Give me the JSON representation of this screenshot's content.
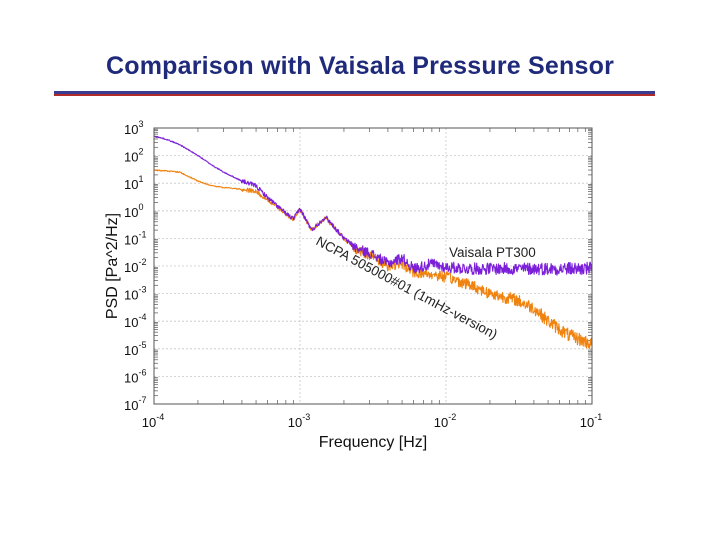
{
  "slide": {
    "title": "Comparison with Vaisala Pressure Sensor",
    "title_color": "#1f2a7a",
    "rule_top_color": "#3a3c8f",
    "rule_bottom_color": "#b02a2a"
  },
  "chart_data": {
    "type": "line",
    "title": "",
    "xlabel": "Frequency [Hz]",
    "ylabel": "PSD [Pa^2/Hz]",
    "xscale": "log",
    "yscale": "log",
    "xlim": [
      0.0001,
      0.1
    ],
    "ylim": [
      1e-07,
      1000
    ],
    "grid": true,
    "x_ticks": [
      {
        "base": "10",
        "exp": "-4"
      },
      {
        "base": "10",
        "exp": "-3"
      },
      {
        "base": "10",
        "exp": "-2"
      },
      {
        "base": "10",
        "exp": "-1"
      }
    ],
    "y_ticks": [
      {
        "base": "10",
        "exp": "3"
      },
      {
        "base": "10",
        "exp": "2"
      },
      {
        "base": "10",
        "exp": "1"
      },
      {
        "base": "10",
        "exp": "0"
      },
      {
        "base": "10",
        "exp": "-1"
      },
      {
        "base": "10",
        "exp": "-2"
      },
      {
        "base": "10",
        "exp": "-3"
      },
      {
        "base": "10",
        "exp": "-4"
      },
      {
        "base": "10",
        "exp": "-5"
      },
      {
        "base": "10",
        "exp": "-6"
      },
      {
        "base": "10",
        "exp": "-7"
      }
    ],
    "series": [
      {
        "name": "Vaisala PT300",
        "color": "#7b1fd8",
        "x": [
          0.0001,
          0.00012,
          0.00015,
          0.0002,
          0.00025,
          0.0003,
          0.0004,
          0.0005,
          0.0006,
          0.0007,
          0.0008,
          0.0009,
          0.001,
          0.0012,
          0.0015,
          0.002,
          0.0025,
          0.003,
          0.004,
          0.005,
          0.006,
          0.008,
          0.01,
          0.015,
          0.02,
          0.03,
          0.04,
          0.05,
          0.07,
          0.1
        ],
        "y": [
          500,
          400,
          250,
          100,
          45,
          25,
          12,
          8,
          3,
          1.5,
          0.8,
          0.5,
          1.2,
          0.2,
          0.6,
          0.1,
          0.04,
          0.03,
          0.012,
          0.02,
          0.008,
          0.012,
          0.009,
          0.008,
          0.008,
          0.008,
          0.008,
          0.008,
          0.008,
          0.008
        ]
      },
      {
        "name": "NCPA 505000#01 (1mHz-version)",
        "color": "#f0830f",
        "x": [
          0.0001,
          0.00012,
          0.00015,
          0.0002,
          0.00025,
          0.0003,
          0.0004,
          0.0005,
          0.0006,
          0.0007,
          0.0008,
          0.0009,
          0.001,
          0.0012,
          0.0015,
          0.002,
          0.0025,
          0.003,
          0.004,
          0.005,
          0.006,
          0.008,
          0.01,
          0.015,
          0.02,
          0.03,
          0.04,
          0.05,
          0.07,
          0.1
        ],
        "y": [
          30,
          28,
          25,
          12,
          8,
          7,
          6,
          5,
          2.5,
          1.4,
          0.8,
          0.5,
          1.1,
          0.2,
          0.55,
          0.1,
          0.035,
          0.025,
          0.01,
          0.012,
          0.006,
          0.005,
          0.004,
          0.002,
          0.001,
          0.0006,
          0.0003,
          0.0001,
          3e-05,
          1.5e-05
        ]
      }
    ],
    "annotations": [
      {
        "text": "Vaisala PT300",
        "color": "#222222",
        "target": "Vaisala PT300"
      },
      {
        "text": "NCPA 505000#01 (1mHz-version)",
        "color": "#222222",
        "target": "NCPA 505000#01 (1mHz-version)"
      }
    ]
  }
}
